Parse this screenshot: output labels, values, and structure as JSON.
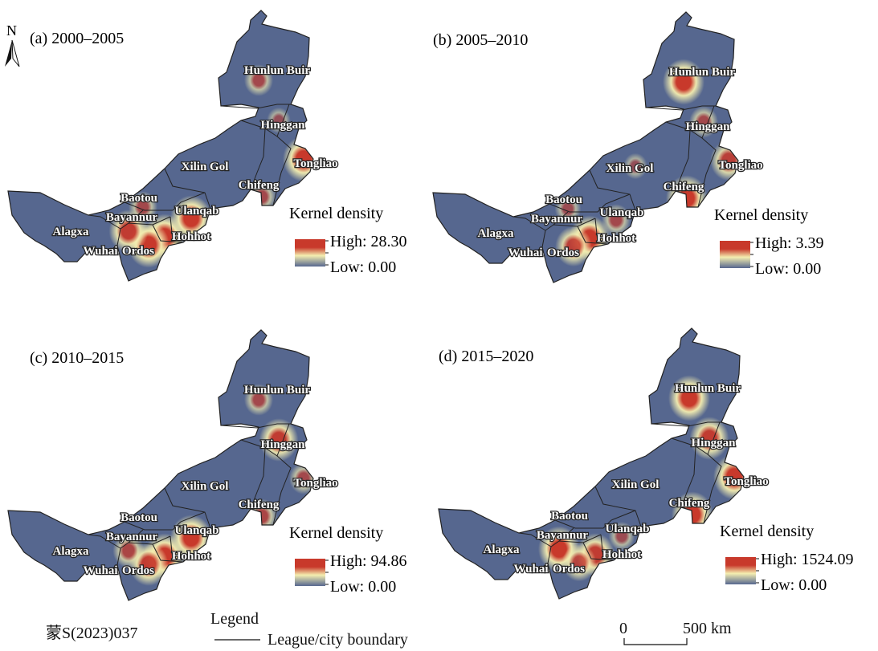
{
  "north_arrow": "N",
  "colors": {
    "low": "#56678f",
    "mid": "#f4eeb0",
    "high": "#c8392b",
    "boundary": "#222222"
  },
  "panels": [
    {
      "title": "(a) 2000–2005",
      "legend_title": "Kernel density",
      "high": "High: 28.30",
      "low": "Low: 0.00",
      "hotspots": [
        {
          "city": "Hunlun Buir",
          "level": 0.5
        },
        {
          "city": "Tongliao",
          "level": 1
        },
        {
          "city": "Chifeng",
          "level": 0.5
        },
        {
          "city": "Hohhot",
          "level": 1
        },
        {
          "city": "Ordos",
          "level": 1
        },
        {
          "city": "Bayannur",
          "level": 0.9
        },
        {
          "city": "Ulanqab",
          "level": 1
        },
        {
          "city": "Baotou",
          "level": 0.5
        },
        {
          "city": "Hinggan",
          "level": 0.3
        }
      ]
    },
    {
      "title": "(b) 2005–2010",
      "legend_title": "Kernel density",
      "high": "High: 3.39",
      "low": "Low: 0.00",
      "hotspots": [
        {
          "city": "Hunlun Buir",
          "level": 1
        },
        {
          "city": "Chifeng",
          "level": 1
        },
        {
          "city": "Tongliao",
          "level": 0.8
        },
        {
          "city": "Hohhot",
          "level": 1
        },
        {
          "city": "Ordos",
          "level": 0.8
        },
        {
          "city": "Ulanqab",
          "level": 0.5
        },
        {
          "city": "Hinggan",
          "level": 0.5
        },
        {
          "city": "Baotou",
          "level": 0.4
        },
        {
          "city": "Xilin Gol",
          "level": 0.3
        }
      ]
    },
    {
      "title": "(c) 2010–2015",
      "legend_title": "Kernel density",
      "high": "High: 94.86",
      "low": "Low: 0.00",
      "hotspots": [
        {
          "city": "Hunlun Buir",
          "level": 0.5
        },
        {
          "city": "Hinggan",
          "level": 0.9
        },
        {
          "city": "Tongliao",
          "level": 0.5
        },
        {
          "city": "Chifeng",
          "level": 0.6
        },
        {
          "city": "Hohhot",
          "level": 1
        },
        {
          "city": "Ulanqab",
          "level": 1
        },
        {
          "city": "Ordos",
          "level": 0.9
        },
        {
          "city": "Bayannur",
          "level": 0.6
        }
      ]
    },
    {
      "title": "(d) 2015–2020",
      "legend_title": "Kernel density",
      "high": "High: 1524.09",
      "low": "Low: 0.00",
      "hotspots": [
        {
          "city": "Hunlun Buir",
          "level": 1
        },
        {
          "city": "Hinggan",
          "level": 0.9
        },
        {
          "city": "Tongliao",
          "level": 1
        },
        {
          "city": "Chifeng",
          "level": 1
        },
        {
          "city": "Bayannur",
          "level": 1
        },
        {
          "city": "Hohhot",
          "level": 0.9
        },
        {
          "city": "Ordos",
          "level": 0.7
        },
        {
          "city": "Ulanqab",
          "level": 0.4
        }
      ]
    }
  ],
  "cities": [
    "Hunlun Buir",
    "Hinggan",
    "Tongliao",
    "Chifeng",
    "Xilin Gol",
    "Baotou",
    "Bayannur",
    "Ulanqab",
    "Hohhot",
    "Alagxa",
    "Wuhai",
    "Ordos"
  ],
  "footer": {
    "approval_number": "蒙S(2023)037",
    "legend_title": "Legend",
    "legend_item": "League/city boundary",
    "scale_zero": "0",
    "scale_label": "500 km"
  }
}
